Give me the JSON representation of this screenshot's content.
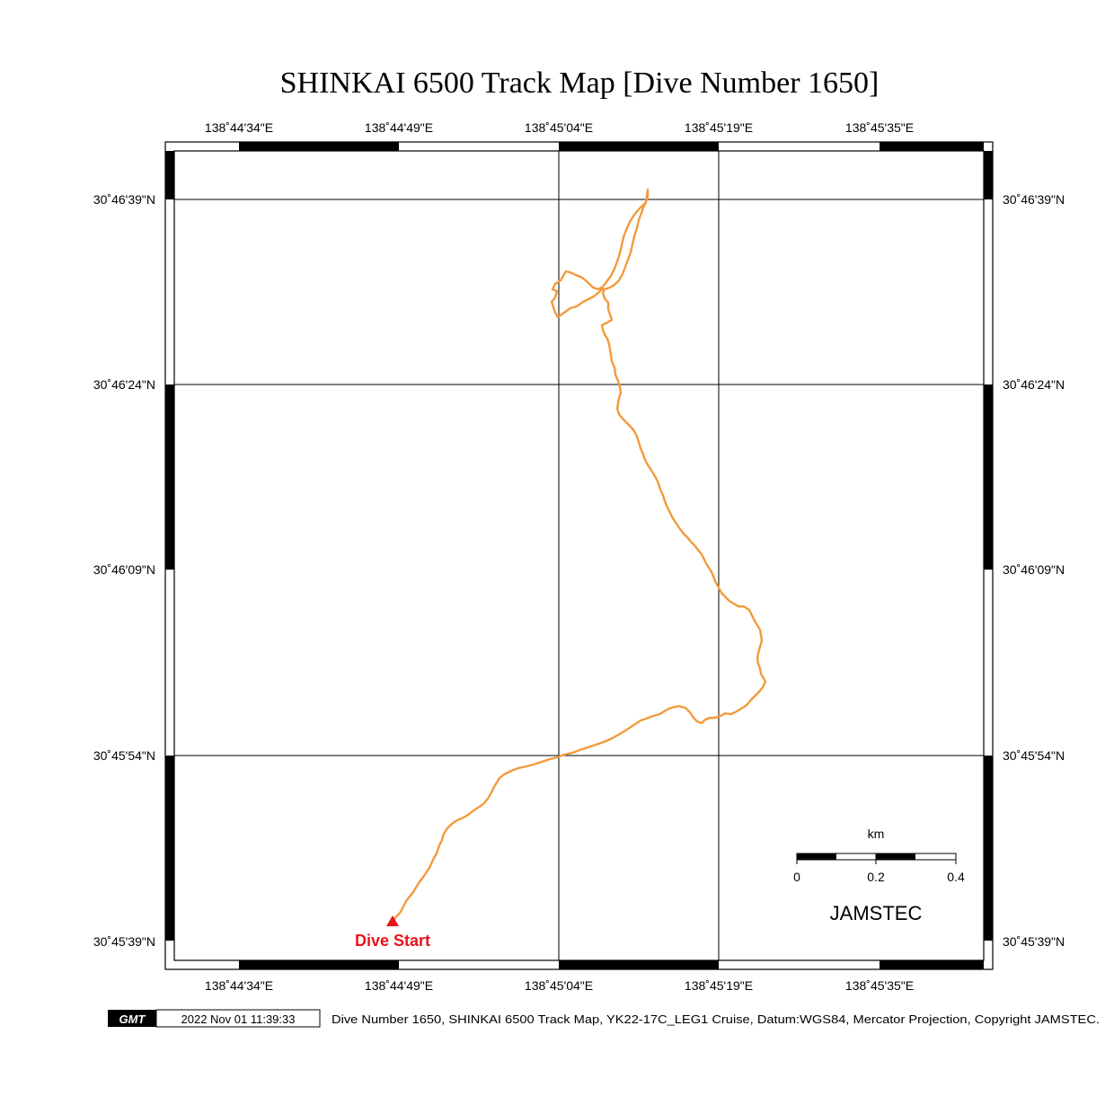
{
  "title": "SHINKAI 6500 Track Map [Dive Number 1650]",
  "lon_ticks": [
    "138˚44'34\"E",
    "138˚44'49\"E",
    "138˚45'04\"E",
    "138˚45'19\"E",
    "138˚45'35\"E"
  ],
  "lat_ticks": [
    "30˚46'39\"N",
    "30˚46'24\"N",
    "30˚46'09\"N",
    "30˚45'54\"N",
    "30˚45'39\"N"
  ],
  "track": {
    "color": "#f39a3c",
    "start_marker_color": "#e8141c",
    "start_label": "Dive Start"
  },
  "scale_bar": {
    "unit": "km",
    "labels": [
      "0",
      "0.2",
      "0.4"
    ]
  },
  "brand": "JAMSTEC",
  "footer": {
    "logo": "GMT",
    "timestamp": "2022 Nov 01 11:39:33",
    "caption": "Dive Number 1650, SHINKAI 6500 Track Map, YK22-17C_LEG1 Cruise, Datum:WGS84, Mercator Projection, Copyright JAMSTEC."
  }
}
